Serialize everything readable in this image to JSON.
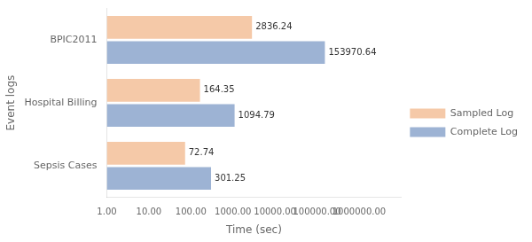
{
  "chart_data": {
    "type": "bar",
    "orientation": "horizontal",
    "log": "x",
    "categories": [
      "Sepsis Cases",
      "Hospital Billing",
      "BPIC2011"
    ],
    "series": [
      {
        "name": "Sampled Log",
        "color": "#f5c9a8",
        "values": [
          72.74,
          164.35,
          2836.24
        ]
      },
      {
        "name": "Complete Log",
        "color": "#9db3d4",
        "values": [
          301.25,
          1094.79,
          153970.64
        ]
      }
    ],
    "xlabel": "Time (sec)",
    "ylabel": "Event logs",
    "xlim": [
      1.0,
      10000000.0
    ],
    "xticks": [
      {
        "value": 1,
        "label": "1.00"
      },
      {
        "value": 10,
        "label": "10.00"
      },
      {
        "value": 100,
        "label": "100.00"
      },
      {
        "value": 1000,
        "label": "1000.00"
      },
      {
        "value": 10000,
        "label": "10000.00"
      },
      {
        "value": 100000,
        "label": "100000.00"
      },
      {
        "value": 1000000,
        "label": "1000000.00"
      }
    ],
    "grid": false,
    "legend": "right",
    "data_labels": true
  }
}
